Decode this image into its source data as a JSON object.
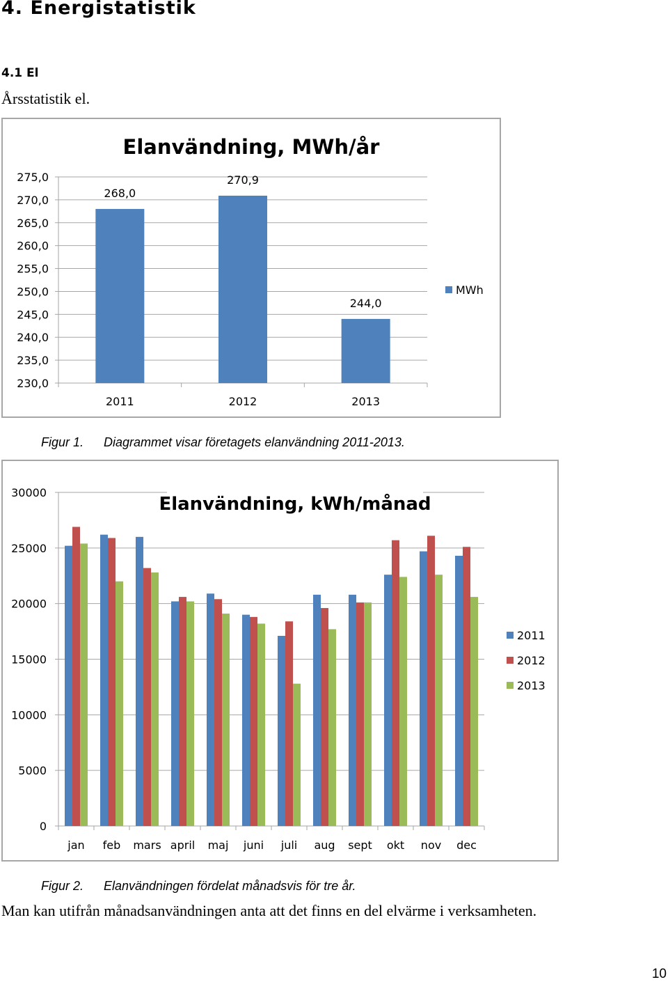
{
  "heading": "4. Energistatistik",
  "subheading": "4.1 El",
  "intro_text": "Årsstatistik el.",
  "figure1": {
    "label": "Figur 1.",
    "caption": "Diagrammet visar företagets elanvändning 2011-2013."
  },
  "figure2": {
    "label": "Figur 2.",
    "caption": "Elanvändningen fördelat månadsvis för tre år."
  },
  "conclusion": "Man kan utifrån månadsanvändningen anta att det finns en del elvärme i verksamheten.",
  "page_number": "10",
  "colors": {
    "series_2011": "#4f81bd",
    "series_2012": "#c0504d",
    "series_2013": "#9bbb59",
    "gridline": "#a6a6a6",
    "border": "#a6a6a6"
  },
  "chart_data": [
    {
      "type": "bar",
      "title": "Elanvändning, MWh/år",
      "categories": [
        "2011",
        "2012",
        "2013"
      ],
      "series": [
        {
          "name": "MWh",
          "values": [
            268.0,
            270.9,
            244.0
          ]
        }
      ],
      "data_labels": [
        "268,0",
        "270,9",
        "244,0"
      ],
      "ylim": [
        230,
        275
      ],
      "yticks": [
        230,
        235,
        240,
        245,
        250,
        255,
        260,
        265,
        270,
        275
      ],
      "ytick_labels": [
        "230,0",
        "235,0",
        "240,0",
        "245,0",
        "250,0",
        "255,0",
        "260,0",
        "265,0",
        "270,0",
        "275,0"
      ],
      "xlabel": "",
      "ylabel": "",
      "grid": true,
      "legend": "right"
    },
    {
      "type": "bar",
      "title": "Elanvändning, kWh/månad",
      "categories": [
        "jan",
        "feb",
        "mars",
        "april",
        "maj",
        "juni",
        "juli",
        "aug",
        "sept",
        "okt",
        "nov",
        "dec"
      ],
      "series": [
        {
          "name": "2011",
          "values": [
            25200,
            26200,
            26000,
            20200,
            20900,
            19000,
            17100,
            20800,
            20800,
            22600,
            24700,
            24300
          ]
        },
        {
          "name": "2012",
          "values": [
            26900,
            25900,
            23200,
            20600,
            20400,
            18800,
            18400,
            19600,
            20100,
            25700,
            26100,
            25100
          ]
        },
        {
          "name": "2013",
          "values": [
            25400,
            22000,
            22800,
            20200,
            19100,
            18200,
            12800,
            17700,
            20100,
            22400,
            22600,
            20600
          ]
        }
      ],
      "ylim": [
        0,
        30000
      ],
      "yticks": [
        0,
        5000,
        10000,
        15000,
        20000,
        25000,
        30000
      ],
      "ytick_labels": [
        "0",
        "5000",
        "10000",
        "15000",
        "20000",
        "25000",
        "30000"
      ],
      "xlabel": "",
      "ylabel": "",
      "grid": true,
      "legend": "right"
    }
  ]
}
